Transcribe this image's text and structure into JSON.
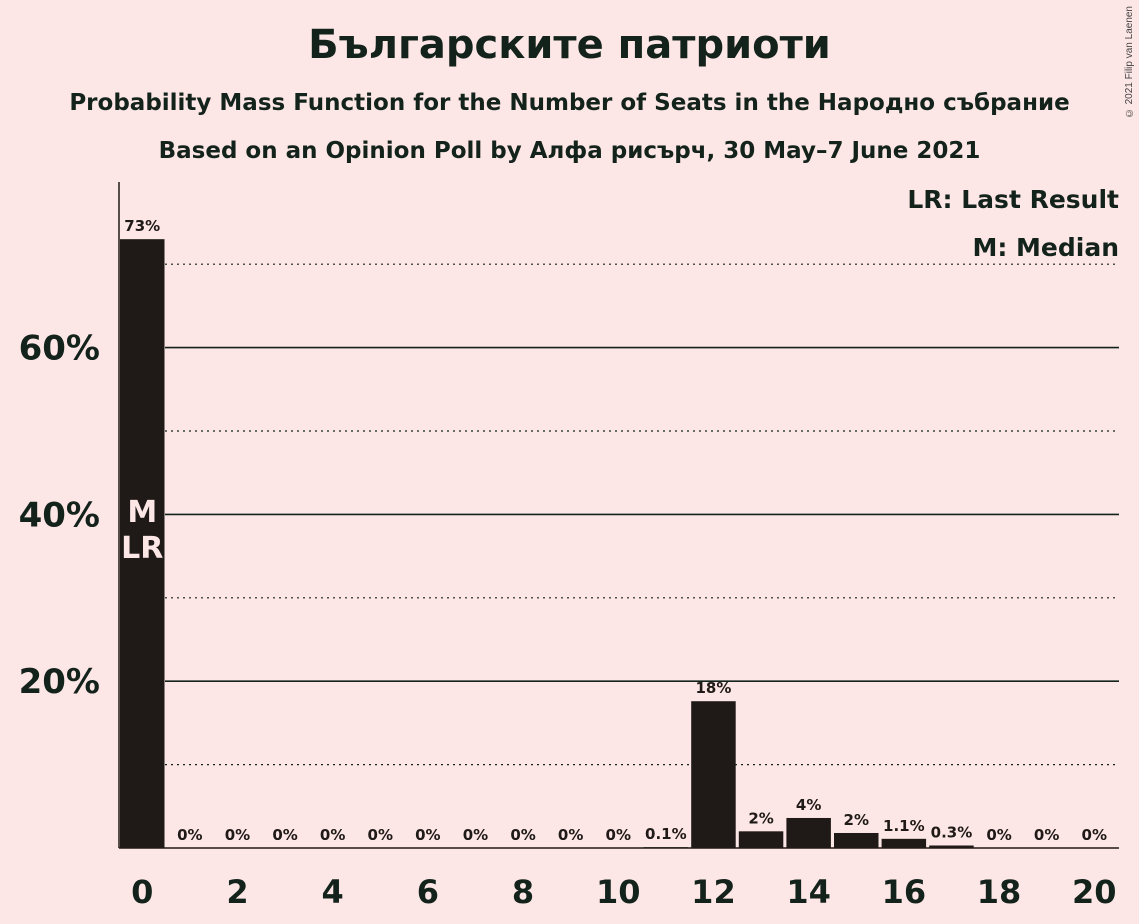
{
  "header": {
    "title": "Българските патриоти",
    "subtitle1": "Probability Mass Function for the Number of Seats in the Народно събрание",
    "subtitle2": "Based on an Opinion Poll by Алфа рисърч, 30 May–7 June 2021",
    "copyright": "© 2021 Filip van Laenen"
  },
  "legend": {
    "last_result": "LR: Last Result",
    "median": "M: Median"
  },
  "chart_data": {
    "type": "bar",
    "x": [
      0,
      1,
      2,
      3,
      4,
      5,
      6,
      7,
      8,
      9,
      10,
      11,
      12,
      13,
      14,
      15,
      16,
      17,
      18,
      19,
      20
    ],
    "values": [
      73,
      0,
      0,
      0,
      0,
      0,
      0,
      0,
      0,
      0,
      0,
      0.1,
      17.6,
      2.0,
      3.6,
      1.8,
      1.1,
      0.3,
      0,
      0,
      0
    ],
    "labels": [
      "73%",
      "0%",
      "0%",
      "0%",
      "0%",
      "0%",
      "0%",
      "0%",
      "0%",
      "0%",
      "0%",
      "0.1%",
      "18%",
      "2%",
      "4%",
      "2%",
      "1.1%",
      "0.3%",
      "0%",
      "0%",
      "0%"
    ],
    "x_ticks": [
      "0",
      "2",
      "4",
      "6",
      "8",
      "10",
      "12",
      "14",
      "16",
      "18",
      "20"
    ],
    "y_ticks": [
      "20%",
      "40%",
      "60%"
    ],
    "ylim": [
      0,
      80
    ],
    "grid": true,
    "bar_color": "#1f1a17",
    "median_seat": 0,
    "last_result_seat": 0,
    "median_marker": "M",
    "last_result_marker": "LR"
  }
}
